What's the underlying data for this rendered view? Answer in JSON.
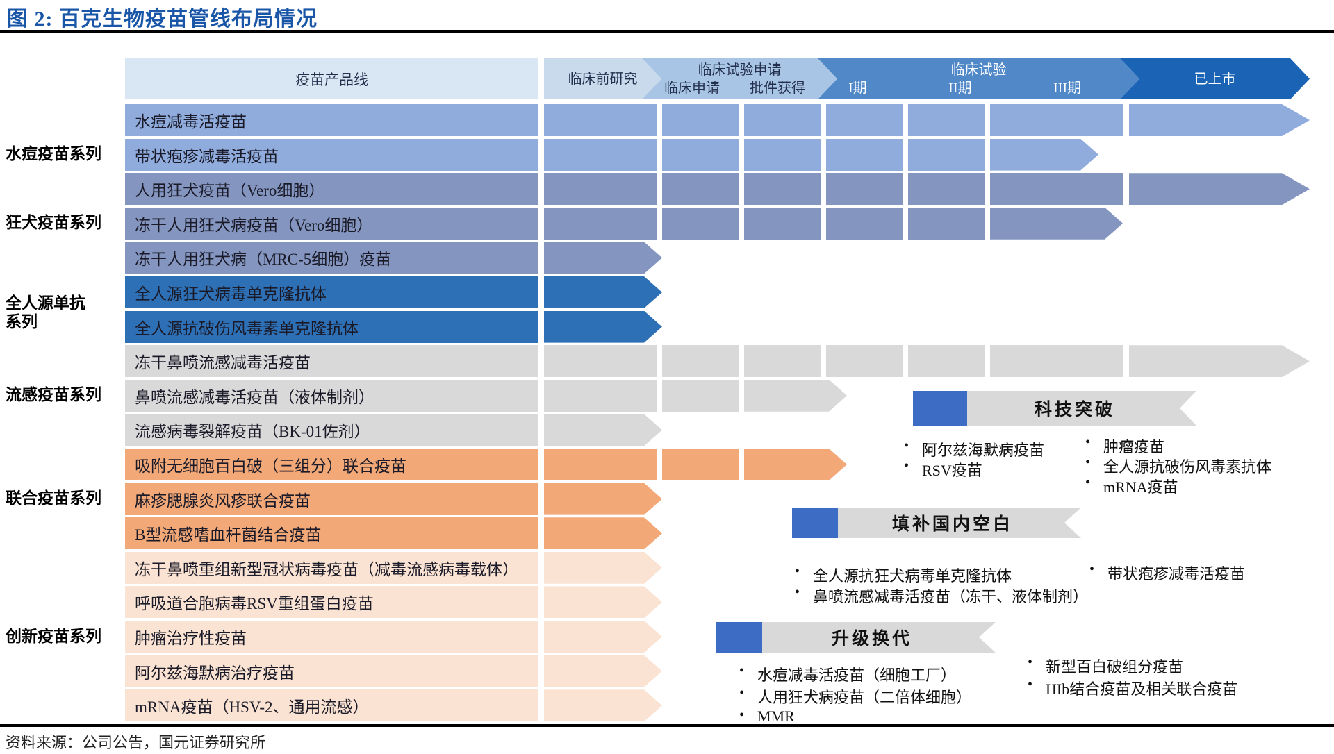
{
  "title": "图 2: 百克生物疫苗管线布局情况",
  "source": "资料来源：公司公告，国元证券研究所",
  "colors": {
    "title_blue": "#1a56a8",
    "header_product_bg": "#d9e6f3",
    "stage_preclinical": "#c9daec",
    "stage_application": "#a9c5e5",
    "stage_trials": "#5088c8",
    "stage_marketed": "#1a63b5",
    "series_varicella": "#8facdd",
    "series_rabies": "#8496c0",
    "series_mab": "#2e70b5",
    "series_flu": "#d9d9d9",
    "series_combo": "#f2a877",
    "series_innovative": "#fae3d2",
    "banner_gray": "#d9d9d9",
    "banner_blue": "#3d6cc4"
  },
  "header": {
    "product_label": "疫苗产品线",
    "stages": [
      {
        "label": "临床前研究",
        "sublabels": [],
        "color": "#c9daec",
        "text_color": "#23304d"
      },
      {
        "label": "临床试验申请",
        "sublabels": [
          "临床申请",
          "批件获得"
        ],
        "color": "#a9c5e5",
        "text_color": "#23304d"
      },
      {
        "label": "临床试验",
        "sublabels": [
          "I期",
          "II期",
          "III期"
        ],
        "color": "#5088c8",
        "text_color": "#ffffff"
      },
      {
        "label": "已上市",
        "sublabels": [],
        "color": "#1a63b5",
        "text_color": "#ffffff"
      }
    ]
  },
  "groups": [
    {
      "label": "水痘疫苗系列",
      "color": "#8facdd",
      "rows": [
        {
          "name": "水痘减毒活疫苗",
          "extent": "marketed"
        },
        {
          "name": "带状疱疹减毒活疫苗",
          "extent": "phase3_short"
        }
      ]
    },
    {
      "label": "狂犬疫苗系列",
      "color": "#8496c0",
      "rows": [
        {
          "name": "人用狂犬疫苗（Vero细胞）",
          "extent": "marketed"
        },
        {
          "name": "冻干人用狂犬病疫苗（Vero细胞）",
          "extent": "phase3_long"
        },
        {
          "name": "冻干人用狂犬病（MRC-5细胞）疫苗",
          "extent": "preclinical"
        }
      ]
    },
    {
      "label": "全人源单抗\n系列",
      "color": "#2e70b5",
      "rows": [
        {
          "name": "全人源狂犬病毒单克隆抗体",
          "extent": "preclinical"
        },
        {
          "name": "全人源抗破伤风毒素单克隆抗体",
          "extent": "preclinical"
        }
      ]
    },
    {
      "label": "流感疫苗系列",
      "color": "#d9d9d9",
      "rows": [
        {
          "name": "冻干鼻喷流感减毒活疫苗",
          "extent": "marketed"
        },
        {
          "name": "鼻喷流感减毒活疫苗（液体制剂）",
          "extent": "approval"
        },
        {
          "name": "流感病毒裂解疫苗（BK-01佐剂）",
          "extent": "preclinical"
        }
      ]
    },
    {
      "label": "联合疫苗系列",
      "color": "#f2a877",
      "rows": [
        {
          "name": "吸附无细胞百白破（三组分）联合疫苗",
          "extent": "approval"
        },
        {
          "name": "麻疹腮腺炎风疹联合疫苗",
          "extent": "preclinical"
        },
        {
          "name": "B型流感嗜血杆菌结合疫苗",
          "extent": "preclinical"
        }
      ]
    },
    {
      "label": "创新疫苗系列",
      "color": "#fae3d2",
      "rows": [
        {
          "name": "冻干鼻喷重组新型冠状病毒疫苗（减毒流感病毒载体）",
          "extent": "preclinical"
        },
        {
          "name": "呼吸道合胞病毒RSV重组蛋白疫苗",
          "extent": "preclinical"
        },
        {
          "name": "肿瘤治疗性疫苗",
          "extent": "preclinical"
        },
        {
          "name": "阿尔兹海默病治疗疫苗",
          "extent": "preclinical"
        },
        {
          "name": "mRNA疫苗（HSV-2、通用流感）",
          "extent": "preclinical"
        }
      ]
    }
  ],
  "callouts": [
    {
      "title": "科技突破",
      "bullets_left": [
        "阿尔兹海默病疫苗",
        "RSV疫苗"
      ],
      "bullets_right": [
        "肿瘤疫苗",
        "全人源抗破伤风毒素抗体",
        "mRNA疫苗"
      ]
    },
    {
      "title": "填补国内空白",
      "bullets_left": [
        "全人源抗狂犬病毒单克隆抗体",
        "鼻喷流感减毒活疫苗（冻干、液体制剂）"
      ],
      "bullets_right": [
        "带状疱疹减毒活疫苗"
      ]
    },
    {
      "title": "升级换代",
      "bullets_left": [
        "水痘减毒活疫苗（细胞工厂）",
        "人用狂犬病疫苗（二倍体细胞）",
        "MMR"
      ],
      "bullets_right": [
        "新型百白破组分疫苗",
        "HIb结合疫苗及相关联合疫苗"
      ]
    }
  ],
  "chart_data": {
    "type": "table",
    "title": "图 2: 百克生物疫苗管线布局情况",
    "columns": [
      "疫苗产品线",
      "临床前研究",
      "临床申请",
      "批件获得",
      "I期",
      "II期",
      "III期",
      "已上市"
    ],
    "rows": [
      {
        "series": "水痘疫苗系列",
        "product": "水痘减毒活疫苗",
        "stage_reached": "已上市"
      },
      {
        "series": "水痘疫苗系列",
        "product": "带状疱疹减毒活疫苗",
        "stage_reached": "III期"
      },
      {
        "series": "狂犬疫苗系列",
        "product": "人用狂犬疫苗（Vero细胞）",
        "stage_reached": "已上市"
      },
      {
        "series": "狂犬疫苗系列",
        "product": "冻干人用狂犬病疫苗（Vero细胞）",
        "stage_reached": "III期"
      },
      {
        "series": "狂犬疫苗系列",
        "product": "冻干人用狂犬病（MRC-5细胞）疫苗",
        "stage_reached": "临床前研究"
      },
      {
        "series": "全人源单抗系列",
        "product": "全人源狂犬病毒单克隆抗体",
        "stage_reached": "临床前研究"
      },
      {
        "series": "全人源单抗系列",
        "product": "全人源抗破伤风毒素单克隆抗体",
        "stage_reached": "临床前研究"
      },
      {
        "series": "流感疫苗系列",
        "product": "冻干鼻喷流感减毒活疫苗",
        "stage_reached": "已上市"
      },
      {
        "series": "流感疫苗系列",
        "product": "鼻喷流感减毒活疫苗（液体制剂）",
        "stage_reached": "批件获得"
      },
      {
        "series": "流感疫苗系列",
        "product": "流感病毒裂解疫苗（BK-01佐剂）",
        "stage_reached": "临床前研究"
      },
      {
        "series": "联合疫苗系列",
        "product": "吸附无细胞百白破（三组分）联合疫苗",
        "stage_reached": "批件获得"
      },
      {
        "series": "联合疫苗系列",
        "product": "麻疹腮腺炎风疹联合疫苗",
        "stage_reached": "临床前研究"
      },
      {
        "series": "联合疫苗系列",
        "product": "B型流感嗜血杆菌结合疫苗",
        "stage_reached": "临床前研究"
      },
      {
        "series": "创新疫苗系列",
        "product": "冻干鼻喷重组新型冠状病毒疫苗（减毒流感病毒载体）",
        "stage_reached": "临床前研究"
      },
      {
        "series": "创新疫苗系列",
        "product": "呼吸道合胞病毒RSV重组蛋白疫苗",
        "stage_reached": "临床前研究"
      },
      {
        "series": "创新疫苗系列",
        "product": "肿瘤治疗性疫苗",
        "stage_reached": "临床前研究"
      },
      {
        "series": "创新疫苗系列",
        "product": "阿尔兹海默病治疗疫苗",
        "stage_reached": "临床前研究"
      },
      {
        "series": "创新疫苗系列",
        "product": "mRNA疫苗（HSV-2、通用流感）",
        "stage_reached": "临床前研究"
      }
    ]
  }
}
